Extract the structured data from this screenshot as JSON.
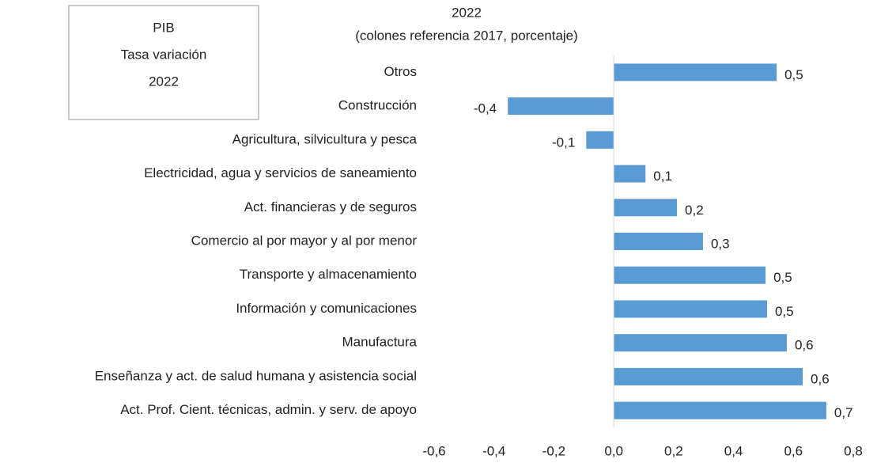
{
  "chart_data": {
    "type": "barh",
    "title": "2022",
    "subtitle": "(colones referencia 2017, porcentaje)",
    "annotation": [
      "PIB",
      "Tasa variación",
      "2022"
    ],
    "categories": [
      "Otros",
      "Construcción",
      "Agricultura, silvicultura y pesca",
      "Electricidad, agua y servicios de saneamiento",
      "Act. financieras y de seguros",
      "Comercio al por mayor y al por menor",
      "Transporte y almacenamiento",
      "Información y comunicaciones",
      "Manufactura",
      "Enseñanza y act. de salud humana y asistencia social",
      "Act. Prof. Cient. técnicas, admin. y serv. de apoyo"
    ],
    "values": [
      0.544,
      -0.354,
      -0.092,
      0.106,
      0.211,
      0.298,
      0.507,
      0.512,
      0.578,
      0.631,
      0.71
    ],
    "value_labels": [
      "0,5",
      "-0,4",
      "-0,1",
      "0,1",
      "0,2",
      "0,3",
      "0,5",
      "0,5",
      "0,6",
      "0,6",
      "0,7"
    ],
    "color": "#5b9bd5",
    "xlim": [
      -0.6,
      0.8
    ],
    "xticks": [
      {
        "value": -0.6,
        "label": "-0,6"
      },
      {
        "value": -0.4,
        "label": "-0,4"
      },
      {
        "value": -0.2,
        "label": "-0,2"
      },
      {
        "value": 0,
        "label": "0,0"
      },
      {
        "value": 0.2,
        "label": "0,2"
      },
      {
        "value": 0.4,
        "label": "0,4"
      },
      {
        "value": 0.6,
        "label": "0,6"
      },
      {
        "value": 0.8,
        "label": "0,8"
      }
    ],
    "grid": false
  }
}
